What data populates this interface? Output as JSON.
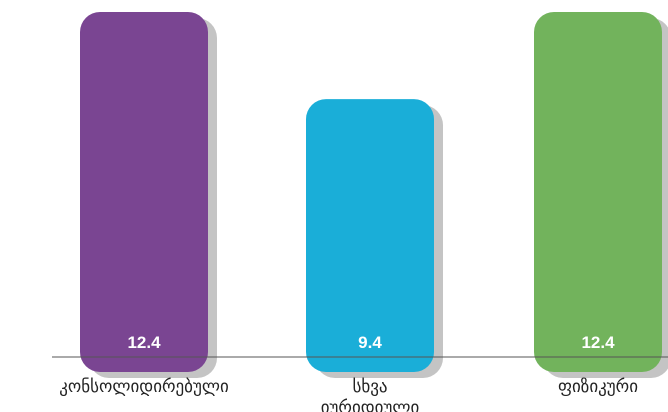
{
  "chart_data": {
    "type": "bar",
    "categories": [
      [
        "კონსოლიდირებული"
      ],
      [
        "სხვა",
        "იურიდიული"
      ],
      [
        "ფიზიკური"
      ]
    ],
    "values": [
      12.4,
      9.4,
      12.4
    ],
    "value_labels": [
      "12.4",
      "9.4",
      "12.4"
    ],
    "colors": [
      "#7a4592",
      "#1aaed8",
      "#72b35c"
    ],
    "shadow_color": "#c4c4c4",
    "title": "",
    "xlabel": "",
    "ylabel": "",
    "ylim": [
      0,
      12.4
    ],
    "grid": false,
    "legend": "none"
  }
}
